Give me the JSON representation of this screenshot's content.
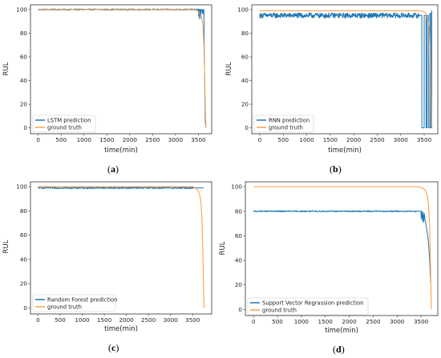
{
  "colors": {
    "prediction": "#1f77b4",
    "truth": "#ff9f4a",
    "axes": "#333333",
    "background": "#ffffff"
  },
  "chart_data": [
    {
      "id": "a",
      "type": "line",
      "caption": "a",
      "xlabel": "time(min)",
      "ylabel": "RUL",
      "xlim": [
        -170,
        3790
      ],
      "ylim": [
        -5,
        104
      ],
      "xticks": [
        0,
        500,
        1000,
        1500,
        2000,
        2500,
        3000,
        3500
      ],
      "yticks": [
        0,
        20,
        40,
        60,
        80,
        100
      ],
      "legend_position": "lower-left",
      "series": [
        {
          "name": "LSTM prediction",
          "color_key": "prediction",
          "x": [
            0,
            600,
            1200,
            1800,
            2400,
            3000,
            3500,
            3510,
            3515,
            3525,
            3530,
            3540,
            3545,
            3555,
            3560,
            3580,
            3590,
            3600,
            3610,
            3620,
            3625,
            3630,
            3640,
            3650,
            3660,
            3670
          ],
          "y": [
            100,
            100,
            100,
            100,
            100,
            100,
            100,
            94,
            100,
            92,
            100,
            95,
            100,
            93,
            100,
            100,
            97,
            100,
            96,
            100,
            80,
            55,
            30,
            5,
            1,
            1
          ],
          "noise": 0.6
        },
        {
          "name": "ground truth",
          "color_key": "truth",
          "x": [
            0,
            3400,
            3480,
            3530,
            3570,
            3600,
            3620,
            3635,
            3650,
            3665
          ],
          "y": [
            100,
            100,
            99,
            97,
            93,
            86,
            70,
            45,
            18,
            0
          ]
        }
      ]
    },
    {
      "id": "b",
      "type": "line",
      "caption": "b",
      "xlabel": "time(min)",
      "ylabel": "RUL",
      "xlim": [
        -170,
        3790
      ],
      "ylim": [
        -5,
        104
      ],
      "xticks": [
        0,
        500,
        1000,
        1500,
        2000,
        2500,
        3000,
        3500
      ],
      "yticks": [
        0,
        20,
        40,
        60,
        80,
        100
      ],
      "legend_position": "lower-left",
      "series": [
        {
          "name": "RNN prediction",
          "color_key": "prediction",
          "x": [
            0,
            600,
            1200,
            1800,
            2400,
            3000,
            3400,
            3450,
            3451,
            3500,
            3501,
            3540,
            3541,
            3560,
            3561,
            3590,
            3591,
            3620,
            3621,
            3640,
            3641,
            3660,
            3661,
            3670
          ],
          "y": [
            95,
            95,
            95,
            95,
            95,
            95,
            95,
            95,
            0,
            0,
            95,
            95,
            0,
            0,
            95,
            95,
            0,
            0,
            97,
            97,
            0,
            0,
            99,
            99
          ],
          "noise": 2.2
        },
        {
          "name": "ground truth",
          "color_key": "truth",
          "x": [
            0,
            3400,
            3480,
            3530,
            3570,
            3600,
            3620,
            3635,
            3650,
            3665
          ],
          "y": [
            99,
            99,
            98.5,
            97,
            93,
            86,
            70,
            45,
            18,
            0
          ]
        }
      ]
    },
    {
      "id": "c",
      "type": "line",
      "caption": "c",
      "xlabel": "time(min)",
      "ylabel": "RUL",
      "xlim": [
        -170,
        3930
      ],
      "ylim": [
        -5,
        104
      ],
      "xticks": [
        0,
        500,
        1000,
        1500,
        2000,
        2500,
        3000,
        3500
      ],
      "yticks": [
        0,
        20,
        40,
        60,
        80,
        100
      ],
      "legend_position": "lower-left",
      "series": [
        {
          "name": "Random Forest prediction",
          "color_key": "prediction",
          "x": [
            0,
            600,
            1200,
            1800,
            2400,
            3000,
            3500,
            3700,
            3750
          ],
          "y": [
            99,
            99,
            99,
            99,
            99,
            99,
            99,
            99,
            99
          ],
          "noise": 0.7
        },
        {
          "name": "ground truth",
          "color_key": "truth",
          "x": [
            0,
            3500,
            3560,
            3620,
            3660,
            3690,
            3710,
            3730,
            3745,
            3755
          ],
          "y": [
            100,
            100,
            99,
            97,
            93,
            86,
            72,
            48,
            20,
            0
          ]
        }
      ]
    },
    {
      "id": "d",
      "type": "line",
      "caption": "d",
      "xlabel": "time(min)",
      "ylabel": "RUL",
      "xlim": [
        -170,
        3850
      ],
      "ylim": [
        -5,
        104
      ],
      "xticks": [
        0,
        500,
        1000,
        1500,
        2000,
        2500,
        3000,
        3500
      ],
      "yticks": [
        0,
        20,
        40,
        60,
        80,
        100
      ],
      "legend_position": "lower-left",
      "series": [
        {
          "name": "Support Vector Regrassion prediction",
          "color_key": "prediction",
          "x": [
            0,
            600,
            1200,
            1800,
            2400,
            3000,
            3400,
            3450,
            3500,
            3505,
            3520,
            3530,
            3545,
            3555,
            3570,
            3585,
            3600,
            3620,
            3640,
            3660,
            3680,
            3700
          ],
          "y": [
            80,
            80,
            80,
            80,
            80,
            80,
            80,
            80,
            80,
            74,
            80,
            72,
            79,
            71,
            78,
            73,
            70,
            65,
            60,
            52,
            40,
            22
          ],
          "noise": 0.5
        },
        {
          "name": "ground truth",
          "color_key": "truth",
          "x": [
            0,
            3450,
            3530,
            3590,
            3630,
            3655,
            3675,
            3690,
            3705,
            3715
          ],
          "y": [
            100,
            100,
            99,
            97,
            93,
            86,
            72,
            48,
            20,
            0
          ]
        }
      ]
    }
  ]
}
